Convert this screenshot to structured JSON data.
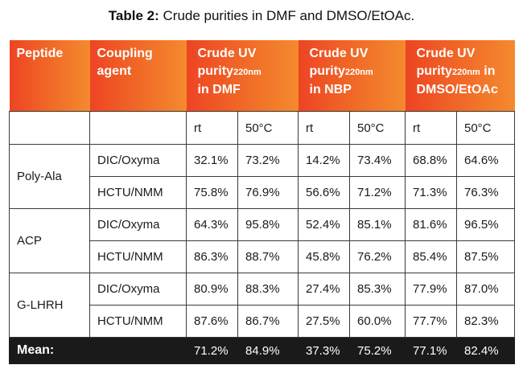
{
  "caption": {
    "label": "Table 2:",
    "text": "Crude purities in DMF and DMSO/EtOAc."
  },
  "header": {
    "peptide": "Peptide",
    "coupling_line1": "Coupling",
    "coupling_line2": "agent",
    "groups": [
      {
        "line1": "Crude UV",
        "line2_pre": "purity",
        "sub": "220nm",
        "line3": "in DMF"
      },
      {
        "line1": "Crude UV",
        "line2_pre": "purity",
        "sub": "220nm",
        "line3": "in NBP"
      },
      {
        "line1": "Crude UV",
        "line2_pre": "purity",
        "sub": "220nm",
        "line2_post": " in",
        "line3": "DMSO/EtOAc"
      }
    ],
    "temps": [
      "rt",
      "50°C",
      "rt",
      "50°C",
      "rt",
      "50°C"
    ]
  },
  "rows": [
    {
      "peptide": "Poly-Ala",
      "agents": [
        {
          "agent": "DIC/Oxyma",
          "values": [
            "32.1%",
            "73.2%",
            "14.2%",
            "73.4%",
            "68.8%",
            "64.6%"
          ]
        },
        {
          "agent": "HCTU/NMM",
          "values": [
            "75.8%",
            "76.9%",
            "56.6%",
            "71.2%",
            "71.3%",
            "76.3%"
          ]
        }
      ]
    },
    {
      "peptide": "ACP",
      "agents": [
        {
          "agent": "DIC/Oxyma",
          "values": [
            "64.3%",
            "95.8%",
            "52.4%",
            "85.1%",
            "81.6%",
            "96.5%"
          ]
        },
        {
          "agent": "HCTU/NMM",
          "values": [
            "86.3%",
            "88.7%",
            "45.8%",
            "76.2%",
            "85.4%",
            "87.5%"
          ]
        }
      ]
    },
    {
      "peptide": "G-LHRH",
      "agents": [
        {
          "agent": "DIC/Oxyma",
          "values": [
            "80.9%",
            "88.3%",
            "27.4%",
            "85.3%",
            "77.9%",
            "87.0%"
          ]
        },
        {
          "agent": "HCTU/NMM",
          "values": [
            "87.6%",
            "86.7%",
            "27.5%",
            "60.0%",
            "77.7%",
            "82.3%"
          ]
        }
      ]
    }
  ],
  "mean": {
    "label": "Mean:",
    "values": [
      "71.2%",
      "84.9%",
      "37.3%",
      "75.2%",
      "77.1%",
      "82.4%"
    ]
  }
}
